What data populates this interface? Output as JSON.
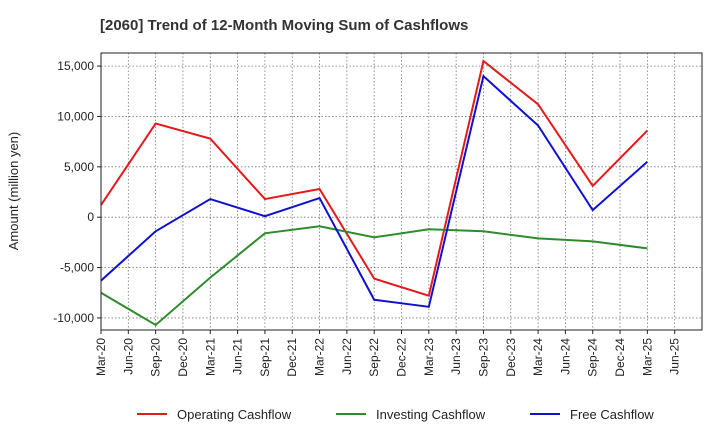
{
  "chart_data": {
    "type": "line",
    "title": "[2060]  Trend of 12-Month Moving Sum of Cashflows",
    "xlabel": "",
    "ylabel": "Amount (million yen)",
    "ylim": [
      -11200,
      16300
    ],
    "yticks": [
      15000,
      10000,
      5000,
      0,
      -5000,
      -10000
    ],
    "ytick_labels": [
      "15,000",
      "10,000",
      "5,000",
      "0",
      "-5,000",
      "-10,000"
    ],
    "categories": [
      "Mar-20",
      "Jun-20",
      "Sep-20",
      "Dec-20",
      "Mar-21",
      "Jun-21",
      "Sep-21",
      "Dec-21",
      "Mar-22",
      "Jun-22",
      "Sep-22",
      "Dec-22",
      "Mar-23",
      "Jun-23",
      "Sep-23",
      "Dec-23",
      "Mar-24",
      "Jun-24",
      "Sep-24",
      "Dec-24",
      "Mar-25",
      "Jun-25"
    ],
    "grid": true,
    "legend_position": "bottom",
    "series": [
      {
        "name": "Operating Cashflow",
        "color": "#e31a1c",
        "x": [
          "Mar-20",
          "Sep-20",
          "Mar-21",
          "Sep-21",
          "Mar-22",
          "Sep-22",
          "Mar-23",
          "Sep-23",
          "Mar-24",
          "Sep-24",
          "Mar-25"
        ],
        "values": [
          1200,
          9300,
          7800,
          1800,
          2800,
          -6100,
          -7800,
          15500,
          11200,
          3100,
          8600
        ]
      },
      {
        "name": "Investing Cashflow",
        "color": "#2e8b2e",
        "x": [
          "Mar-20",
          "Sep-20",
          "Mar-21",
          "Sep-21",
          "Mar-22",
          "Sep-22",
          "Mar-23",
          "Sep-23",
          "Mar-24",
          "Sep-24",
          "Mar-25"
        ],
        "values": [
          -7500,
          -10700,
          -6000,
          -1600,
          -900,
          -2000,
          -1200,
          -1400,
          -2100,
          -2400,
          -3100
        ]
      },
      {
        "name": "Free Cashflow",
        "color": "#1010d0",
        "x": [
          "Mar-20",
          "Sep-20",
          "Mar-21",
          "Sep-21",
          "Mar-22",
          "Sep-22",
          "Mar-23",
          "Sep-23",
          "Mar-24",
          "Sep-24",
          "Mar-25"
        ],
        "values": [
          -6300,
          -1400,
          1800,
          100,
          1900,
          -8200,
          -8900,
          14000,
          9100,
          700,
          5500
        ]
      }
    ]
  }
}
